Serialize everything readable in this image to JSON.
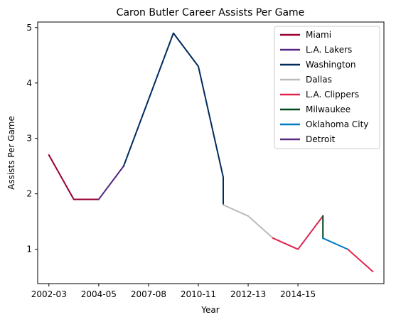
{
  "chart_data": {
    "type": "line",
    "title": "Caron Butler Career Assists Per Game",
    "xlabel": "Year",
    "ylabel": "Assists Per Game",
    "xlim": [
      -0.45,
      13.45
    ],
    "ylim": [
      0.38,
      5.1
    ],
    "xticks": [
      {
        "pos": 0,
        "label": "2002-03"
      },
      {
        "pos": 2,
        "label": "2004-05"
      },
      {
        "pos": 4,
        "label": "2007-08"
      },
      {
        "pos": 6,
        "label": "2010-11"
      },
      {
        "pos": 8,
        "label": "2012-13"
      },
      {
        "pos": 10,
        "label": "2014-15"
      }
    ],
    "yticks": [
      1,
      2,
      3,
      4,
      5
    ],
    "legend_position": "top-right",
    "series": [
      {
        "name": "Miami",
        "color": "#98002E",
        "points": [
          [
            0,
            2.7
          ],
          [
            1,
            1.9
          ],
          [
            2,
            1.9
          ]
        ]
      },
      {
        "name": "L.A. Lakers",
        "color": "#552583",
        "points": [
          [
            2,
            1.9
          ],
          [
            3,
            2.5
          ]
        ]
      },
      {
        "name": "Washington",
        "color": "#002B5C",
        "points": [
          [
            3,
            2.5
          ],
          [
            5,
            4.9
          ],
          [
            6,
            4.3
          ],
          [
            7,
            2.3
          ],
          [
            7,
            1.8
          ]
        ]
      },
      {
        "name": "Dallas",
        "color": "#BBBBBB",
        "points": [
          [
            7,
            1.8
          ],
          [
            8,
            1.6
          ],
          [
            9,
            1.2
          ]
        ]
      },
      {
        "name": "L.A. Clippers",
        "color": "#E0234E",
        "points": [
          [
            9,
            1.2
          ],
          [
            10,
            1.0
          ],
          [
            11,
            1.6
          ]
        ]
      },
      {
        "name": "Milwaukee",
        "color": "#00471B",
        "points": [
          [
            11,
            1.6
          ],
          [
            11,
            1.2
          ]
        ]
      },
      {
        "name": "Oklahoma City",
        "color": "#007AC1",
        "points": [
          [
            11,
            1.2
          ],
          [
            12,
            1.0
          ]
        ]
      },
      {
        "name": "Detroit",
        "color": "#5A2D81",
        "points": []
      },
      {
        "name": "L.A. Clippers",
        "color": "#E0234E",
        "points": [
          [
            12,
            1.0
          ],
          [
            13,
            0.6
          ]
        ],
        "legend": false
      }
    ]
  }
}
